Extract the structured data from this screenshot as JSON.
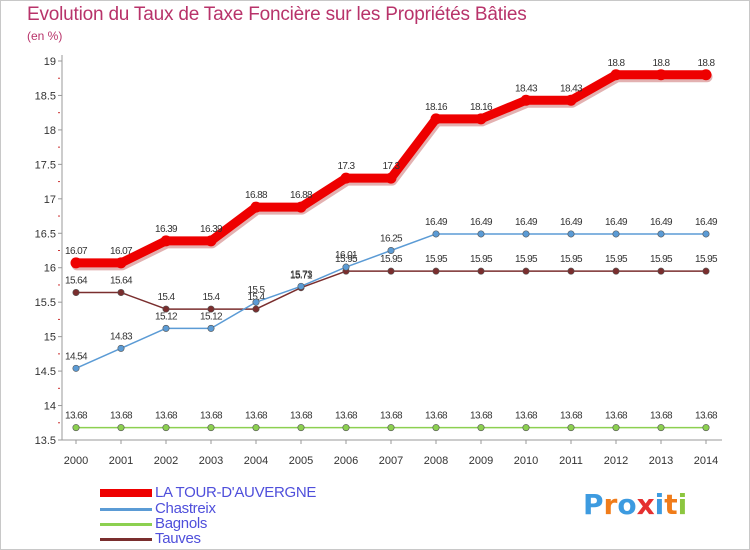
{
  "title": "Evolution du Taux de Taxe Foncière sur les Propriétés Bâties",
  "unit_label": "(en %)",
  "logo": {
    "letters": [
      "P",
      "r",
      "o",
      "x",
      "i",
      "t",
      "i"
    ],
    "colors": [
      "#3d9be0",
      "#f07c1a",
      "#3d9be0",
      "#e53030",
      "#3d9be0",
      "#f07c1a",
      "#8cc63f"
    ]
  },
  "chart_data": {
    "type": "line",
    "x": [
      2000,
      2001,
      2002,
      2003,
      2004,
      2005,
      2006,
      2007,
      2008,
      2009,
      2010,
      2011,
      2012,
      2013,
      2014
    ],
    "ylim": [
      13.5,
      19
    ],
    "yticks": [
      "13.5",
      "14",
      "14.5",
      "15",
      "15.5",
      "16",
      "16.5",
      "17",
      "17.5",
      "18",
      "18.5",
      "19"
    ],
    "grid": false,
    "legend_position": "bottom-left",
    "series": [
      {
        "name": "LA TOUR-D'AUVERGNE",
        "color": "#ee0000",
        "values": [
          16.07,
          16.07,
          16.39,
          16.39,
          16.88,
          16.88,
          17.3,
          17.3,
          18.16,
          18.16,
          18.43,
          18.43,
          18.8,
          18.8,
          18.8
        ],
        "labels": [
          "16.07",
          "16.07",
          "16.39",
          "16.39",
          "16.88",
          "16.88",
          "17.3",
          "17.3",
          "18.16",
          "18.16",
          "18.43",
          "18.43",
          "18.8",
          "18.8",
          "18.8"
        ]
      },
      {
        "name": "Chastreix",
        "color": "#5b9bd5",
        "values": [
          14.54,
          14.83,
          15.12,
          15.12,
          15.5,
          15.73,
          16.01,
          16.25,
          16.49,
          16.49,
          16.49,
          16.49,
          16.49,
          16.49,
          16.49
        ],
        "labels": [
          "14.54",
          "14.83",
          "15.12",
          "15.12",
          "15.5",
          "15.73",
          "16.01",
          "16.25",
          "16.49",
          "16.49",
          "16.49",
          "16.49",
          "16.49",
          "16.49",
          "16.49"
        ]
      },
      {
        "name": "Bagnols",
        "color": "#8cd050",
        "values": [
          13.68,
          13.68,
          13.68,
          13.68,
          13.68,
          13.68,
          13.68,
          13.68,
          13.68,
          13.68,
          13.68,
          13.68,
          13.68,
          13.68,
          13.68
        ],
        "labels": [
          "13.68",
          "13.68",
          "13.68",
          "13.68",
          "13.68",
          "13.68",
          "13.68",
          "13.68",
          "13.68",
          "13.68",
          "13.68",
          "13.68",
          "13.68",
          "13.68",
          "13.68"
        ]
      },
      {
        "name": "Tauves",
        "color": "#7a2e2e",
        "values": [
          15.64,
          15.64,
          15.4,
          15.4,
          15.4,
          15.71,
          15.95,
          15.95,
          15.95,
          15.95,
          15.95,
          15.95,
          15.95,
          15.95,
          15.95
        ],
        "labels": [
          "15.64",
          "15.64",
          "15.4",
          "15.4",
          "15.4",
          "15.71",
          "15.95",
          "15.95",
          "15.95",
          "15.95",
          "15.95",
          "15.95",
          "15.95",
          "15.95",
          "15.95"
        ]
      }
    ]
  }
}
